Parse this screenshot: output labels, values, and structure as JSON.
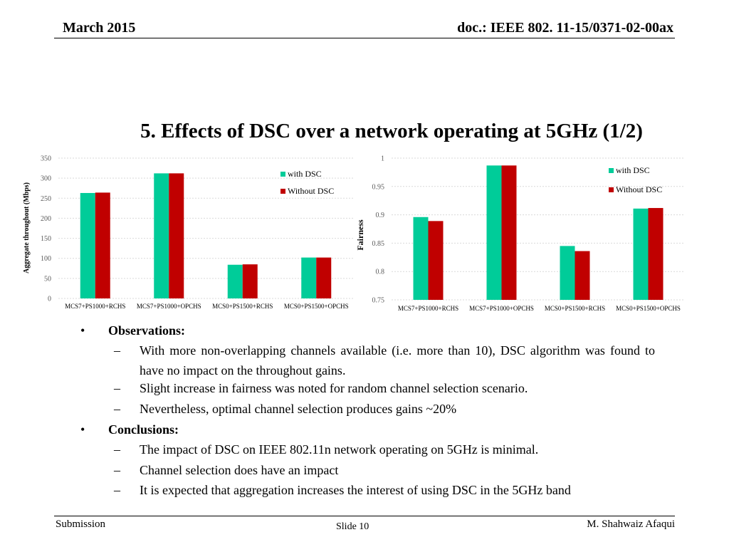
{
  "header": {
    "date": "March 2015",
    "doc": "doc.: IEEE 802. 11-15/0371-02-00ax"
  },
  "title": "5. Effects of DSC over a network operating at 5GHz (1/2)",
  "chart_data": [
    {
      "type": "bar",
      "categories": [
        "MCS7+PS1000+RCHS",
        "MCS7+PS1000+OPCHS",
        "MCS0+PS1500+RCHS",
        "MCS0+PS1500+OPCHS"
      ],
      "series": [
        {
          "name": "with DSC",
          "values": [
            263,
            312,
            84,
            102
          ],
          "color": "#00cc99"
        },
        {
          "name": "Without DSC",
          "values": [
            264,
            312,
            85,
            102
          ],
          "color": "#c00000"
        }
      ],
      "ylabel": "Aggregate throughout (Mbps)",
      "ylim": [
        0,
        350
      ],
      "yticks": [
        0,
        50,
        100,
        150,
        200,
        250,
        300,
        350
      ],
      "grid": true,
      "legend_position": "top-right"
    },
    {
      "type": "bar",
      "categories": [
        "MCS7+PS1000+RCHS",
        "MCS7+PS1000+OPCHS",
        "MCS0+PS1500+RCHS",
        "MCS0+PS1500+OPCHS"
      ],
      "series": [
        {
          "name": "with DSC",
          "values": [
            0.896,
            0.987,
            0.845,
            0.911
          ],
          "color": "#00cc99"
        },
        {
          "name": "Without DSC",
          "values": [
            0.889,
            0.987,
            0.836,
            0.912
          ],
          "color": "#c00000"
        }
      ],
      "ylabel": "Fairness",
      "ylim": [
        0.75,
        1
      ],
      "yticks": [
        "0.75",
        "0.8",
        "0.85",
        "0.9",
        "0.95",
        "1"
      ],
      "grid": true,
      "legend_position": "top-right"
    }
  ],
  "observations": {
    "heading": "Observations:",
    "items": [
      "With more non-overlapping channels available (i.e. more than 10), DSC algorithm was found to have no impact on the throughout gains.",
      "Slight increase in fairness was noted for random channel selection scenario.",
      "Nevertheless, optimal channel selection produces gains ~20%"
    ]
  },
  "conclusions": {
    "heading": "Conclusions:",
    "items": [
      "The impact of DSC on IEEE 802.11n network operating on 5GHz is minimal.",
      "Channel selection does have an impact",
      "It is expected that aggregation increases the interest of using DSC in the 5GHz band"
    ]
  },
  "bullet_symbol": "•",
  "dash_symbol": "–",
  "footer": {
    "left": "Submission",
    "center": "Slide 10",
    "right": "M. Shahwaiz Afaqui"
  }
}
